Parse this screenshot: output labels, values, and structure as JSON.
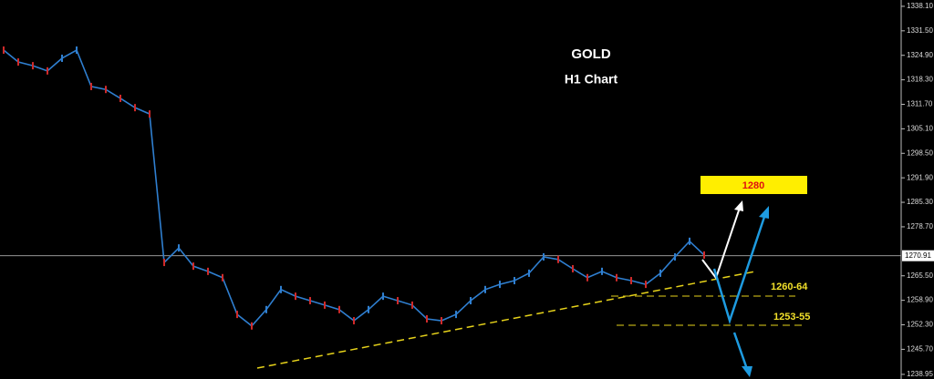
{
  "chart_data": {
    "type": "line",
    "title": "GOLD",
    "subtitle": "H1 Chart",
    "values": [
      1326.3,
      1323.1,
      1322.1,
      1320.7,
      1324.1,
      1326.3,
      1316.5,
      1315.7,
      1313.3,
      1310.8,
      1309.1,
      1269.1,
      1273.0,
      1268.1,
      1266.7,
      1265.0,
      1255.1,
      1252.0,
      1256.4,
      1261.8,
      1260.0,
      1258.8,
      1257.6,
      1256.4,
      1253.4,
      1256.4,
      1260.0,
      1258.8,
      1257.6,
      1253.9,
      1253.4,
      1255.1,
      1258.8,
      1261.8,
      1263.2,
      1264.2,
      1266.2,
      1270.6,
      1269.9,
      1267.4,
      1265.0,
      1266.7,
      1265.0,
      1264.2,
      1263.2,
      1266.2,
      1270.6,
      1274.8,
      1271.1
    ],
    "color": "#2f7fd0",
    "ylim": [
      1237.7,
      1339.8
    ],
    "yticks": [
      {
        "value": 1338.1,
        "label": "1338.10"
      },
      {
        "value": 1331.5,
        "label": "1331.50"
      },
      {
        "value": 1324.9,
        "label": "1324.90"
      },
      {
        "value": 1318.3,
        "label": "1318.30"
      },
      {
        "value": 1311.7,
        "label": "1311.70"
      },
      {
        "value": 1305.1,
        "label": "1305.10"
      },
      {
        "value": 1298.5,
        "label": "1298.50"
      },
      {
        "value": 1291.9,
        "label": "1291.90"
      },
      {
        "value": 1285.3,
        "label": "1285.30"
      },
      {
        "value": 1278.7,
        "label": "1278.70"
      },
      {
        "value": 1265.5,
        "label": "1265.50"
      },
      {
        "value": 1258.9,
        "label": "1258.90"
      },
      {
        "value": 1252.3,
        "label": "1252.30"
      },
      {
        "value": 1245.7,
        "label": "1245.70"
      },
      {
        "value": 1238.95,
        "label": "1238.95"
      }
    ],
    "current_price": {
      "value": 1270.91,
      "label": "1270.91"
    },
    "target_label": "1280",
    "resistance_label": "1260-64",
    "support_label": "1253-55"
  }
}
